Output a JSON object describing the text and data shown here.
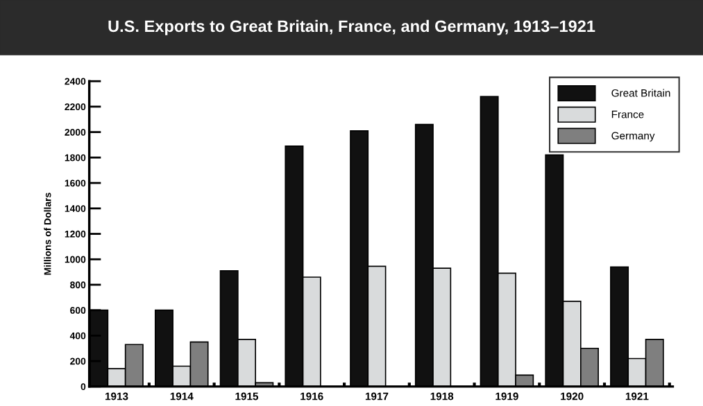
{
  "chart_data": {
    "type": "bar",
    "title": "U.S. Exports to Great Britain, France, and Germany, 1913–1921",
    "ylabel": "Millions of Dollars",
    "categories": [
      "1913",
      "1914",
      "1915",
      "1916",
      "1917",
      "1918",
      "1919",
      "1920",
      "1921"
    ],
    "series": [
      {
        "name": "Great Britain",
        "color": "#111111",
        "values": [
          600,
          600,
          910,
          1890,
          2010,
          2060,
          2280,
          1820,
          940
        ]
      },
      {
        "name": "France",
        "color": "#d9dbdc",
        "values": [
          140,
          160,
          370,
          860,
          945,
          930,
          890,
          670,
          220
        ]
      },
      {
        "name": "Germany",
        "color": "#7f7f7f",
        "values": [
          330,
          350,
          30,
          0,
          0,
          0,
          90,
          300,
          370
        ]
      }
    ],
    "ylim": [
      0,
      2400
    ],
    "yticks": [
      0,
      200,
      400,
      600,
      800,
      1000,
      1200,
      1400,
      1600,
      1800,
      2000,
      2200,
      2400
    ],
    "grid": false,
    "legend": "top right"
  }
}
